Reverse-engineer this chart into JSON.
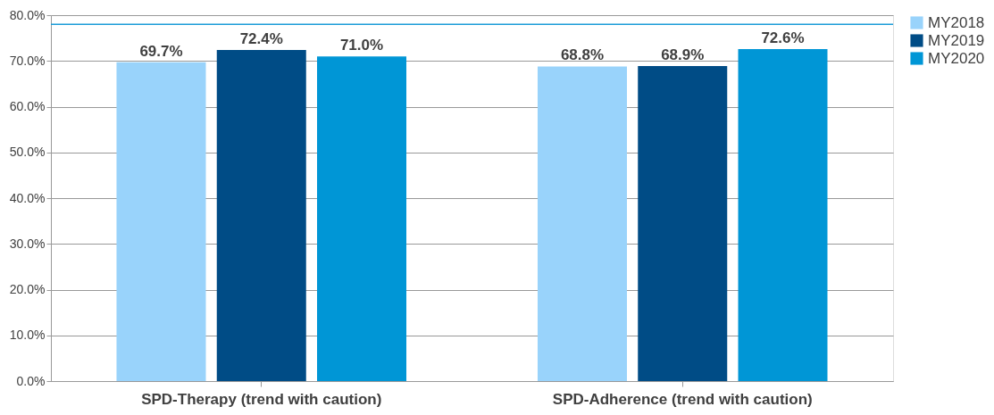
{
  "chart_data": {
    "type": "bar",
    "categories": [
      "SPD-Therapy (trend with caution)",
      "SPD-Adherence (trend with caution)"
    ],
    "series": [
      {
        "name": "MY2018",
        "color": "#99d3fb",
        "values": [
          69.7,
          68.8
        ],
        "value_labels": [
          "69.7%",
          "68.8%"
        ]
      },
      {
        "name": "MY2019",
        "color": "#004c86",
        "values": [
          72.4,
          68.9
        ],
        "value_labels": [
          "72.4%",
          "68.9%"
        ]
      },
      {
        "name": "MY2020",
        "color": "#0096d6",
        "values": [
          71.0,
          72.6
        ],
        "value_labels": [
          "71.0%",
          "72.6%"
        ]
      }
    ],
    "ylim": [
      0,
      80
    ],
    "yticks": [
      {
        "value": 0,
        "label": "0.0%"
      },
      {
        "value": 10,
        "label": "10.0%"
      },
      {
        "value": 20,
        "label": "20.0%"
      },
      {
        "value": 30,
        "label": "30.0%"
      },
      {
        "value": 40,
        "label": "40.0%"
      },
      {
        "value": 50,
        "label": "50.0%"
      },
      {
        "value": 60,
        "label": "60.0%"
      },
      {
        "value": 70,
        "label": "70.0%"
      },
      {
        "value": 80,
        "label": "80.0%"
      }
    ],
    "ref_lines": [
      {
        "axis": "y",
        "value": 78,
        "label": null,
        "color": "#1a9bd7"
      }
    ],
    "grid": "y",
    "legend": "right"
  }
}
